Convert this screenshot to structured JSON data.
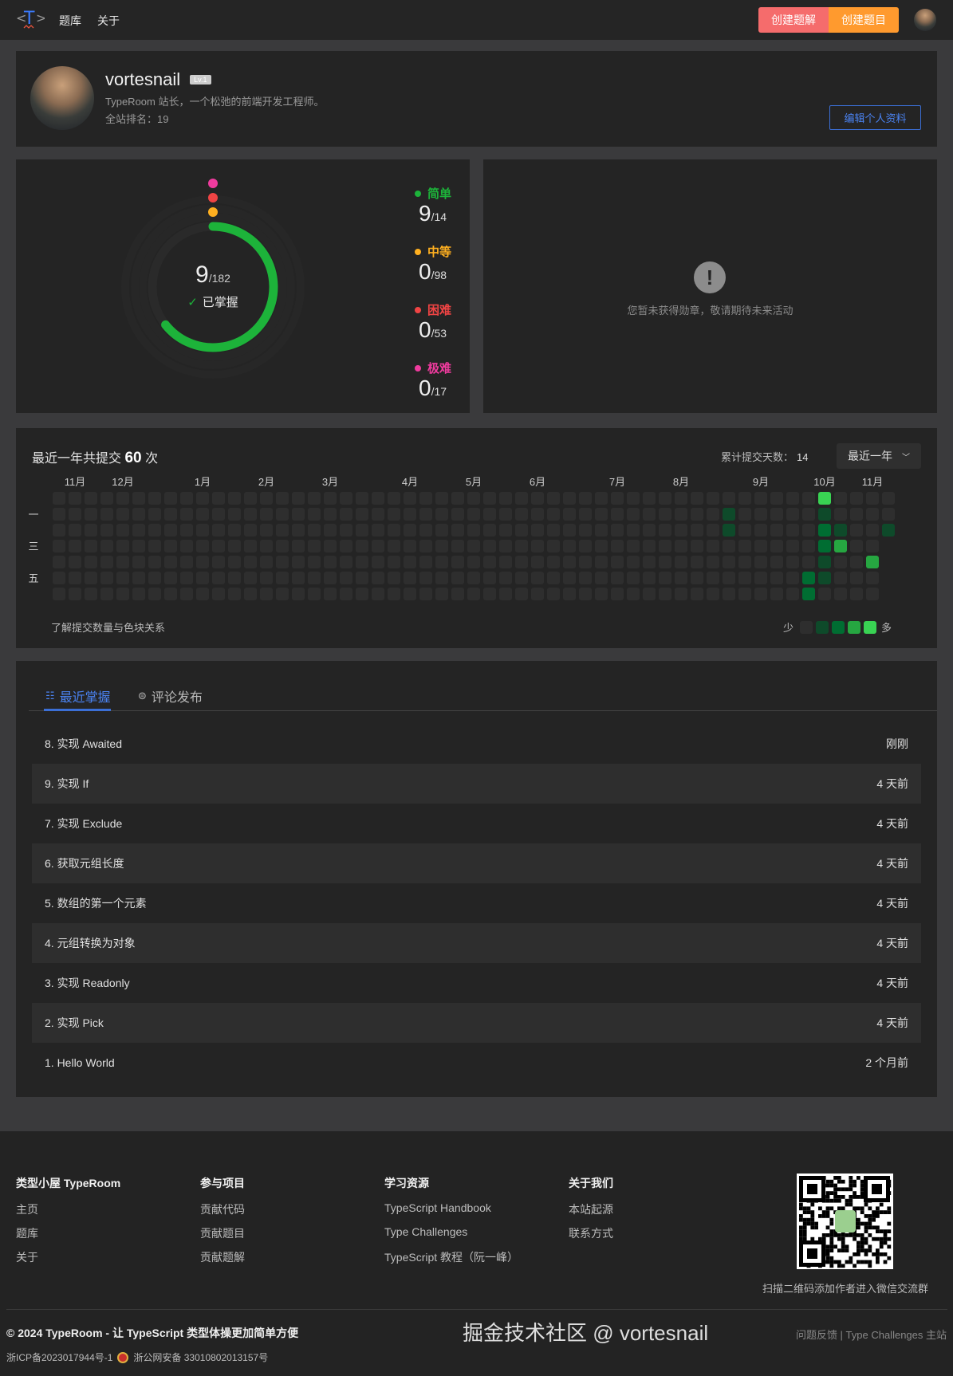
{
  "header": {
    "logo": "<T>",
    "nav": [
      "题库",
      "关于"
    ],
    "create_solution": "创建题解",
    "create_problem": "创建题目",
    "colors": {
      "create_solution": "#f56c6c",
      "create_problem": "#ff9a2e"
    }
  },
  "profile": {
    "name": "vortesnail",
    "level": "Lv.1",
    "bio": "TypeRoom 站长，一个松弛的前端开发工程师。",
    "rank_label": "全站排名：",
    "rank": "19",
    "edit_button": "编辑个人资料"
  },
  "stats": {
    "solved": "9",
    "total": "/182",
    "mastered_label": "已掌握",
    "difficulties": [
      {
        "label": "简单",
        "solved": 9,
        "total": 14,
        "solved_text": "9",
        "total_text": "/14",
        "color": "#1db33a"
      },
      {
        "label": "中等",
        "solved": 0,
        "total": 98,
        "solved_text": "0",
        "total_text": "/98",
        "color": "#ffb020"
      },
      {
        "label": "困难",
        "solved": 0,
        "total": 53,
        "solved_text": "0",
        "total_text": "/53",
        "color": "#f04444"
      },
      {
        "label": "极难",
        "solved": 0,
        "total": 17,
        "solved_text": "0",
        "total_text": "/17",
        "color": "#ef3b9e"
      }
    ]
  },
  "badges": {
    "empty_text": "您暂未获得勋章，敬请期待未来活动",
    "icon": "exclamation-icon"
  },
  "heatmap": {
    "title_prefix": "最近一年共提交",
    "count": "60",
    "title_suffix": "次",
    "days_label": "累计提交天数：",
    "days": "14",
    "range": "最近一年",
    "months": [
      {
        "label": "11月",
        "week": 1
      },
      {
        "label": "12月",
        "week": 4
      },
      {
        "label": "1月",
        "week": 9
      },
      {
        "label": "2月",
        "week": 13
      },
      {
        "label": "3月",
        "week": 17
      },
      {
        "label": "4月",
        "week": 22
      },
      {
        "label": "5月",
        "week": 26
      },
      {
        "label": "6月",
        "week": 30
      },
      {
        "label": "7月",
        "week": 35
      },
      {
        "label": "8月",
        "week": 39
      },
      {
        "label": "9月",
        "week": 44
      },
      {
        "label": "10月",
        "week": 48
      },
      {
        "label": "11月",
        "week": 51
      }
    ],
    "weekdays": [
      "",
      "一",
      "",
      "三",
      "",
      "五",
      ""
    ],
    "weeks": 53,
    "last_week_days": 3,
    "active": [
      {
        "week": 42,
        "day": 1,
        "level": 1
      },
      {
        "week": 42,
        "day": 2,
        "level": 1
      },
      {
        "week": 47,
        "day": 5,
        "level": 2
      },
      {
        "week": 47,
        "day": 6,
        "level": 2
      },
      {
        "week": 48,
        "day": 0,
        "level": 4
      },
      {
        "week": 48,
        "day": 1,
        "level": 1
      },
      {
        "week": 48,
        "day": 2,
        "level": 2
      },
      {
        "week": 48,
        "day": 3,
        "level": 2
      },
      {
        "week": 48,
        "day": 4,
        "level": 1
      },
      {
        "week": 48,
        "day": 5,
        "level": 1
      },
      {
        "week": 49,
        "day": 2,
        "level": 1
      },
      {
        "week": 49,
        "day": 3,
        "level": 3
      },
      {
        "week": 51,
        "day": 4,
        "level": 3
      },
      {
        "week": 52,
        "day": 2,
        "level": 1
      }
    ],
    "level_colors": [
      "#2e2e2e",
      "#0e4a2a",
      "#006d32",
      "#26a641",
      "#39d353"
    ],
    "help_link": "了解提交数量与色块关系",
    "less": "少",
    "more": "多"
  },
  "recent": {
    "tabs": [
      {
        "label": "最近掌握",
        "icon": "list-check-icon",
        "active": true
      },
      {
        "label": "评论发布",
        "icon": "comment-icon",
        "active": false
      }
    ],
    "items": [
      {
        "title": "8. 实现 Awaited",
        "time": "刚刚"
      },
      {
        "title": "9. 实现 If",
        "time": "4 天前"
      },
      {
        "title": "7. 实现 Exclude",
        "time": "4 天前"
      },
      {
        "title": "6. 获取元组长度",
        "time": "4 天前"
      },
      {
        "title": "5. 数组的第一个元素",
        "time": "4 天前"
      },
      {
        "title": "4. 元组转换为对象",
        "time": "4 天前"
      },
      {
        "title": "3. 实现 Readonly",
        "time": "4 天前"
      },
      {
        "title": "2. 实现 Pick",
        "time": "4 天前"
      },
      {
        "title": "1. Hello World",
        "time": "2 个月前"
      }
    ]
  },
  "footer": {
    "columns": [
      {
        "title": "类型小屋 TypeRoom",
        "links": [
          "主页",
          "题库",
          "关于"
        ]
      },
      {
        "title": "参与项目",
        "links": [
          "贡献代码",
          "贡献题目",
          "贡献题解"
        ]
      },
      {
        "title": "学习资源",
        "links": [
          "TypeScript Handbook",
          "Type Challenges",
          "TypeScript 教程（阮一峰）"
        ]
      },
      {
        "title": "关于我们",
        "links": [
          "本站起源",
          "联系方式"
        ]
      }
    ],
    "qr_caption": "扫描二维码添加作者进入微信交流群",
    "copyright": "© 2024 TypeRoom - 让 TypeScript 类型体操更加简单方便",
    "icp": "浙ICP备2023017944号-1",
    "police": "浙公网安备 33010802013157号",
    "right_links": "问题反馈 | Type Challenges 主站",
    "watermark": "掘金技术社区 @ vortesnail"
  }
}
